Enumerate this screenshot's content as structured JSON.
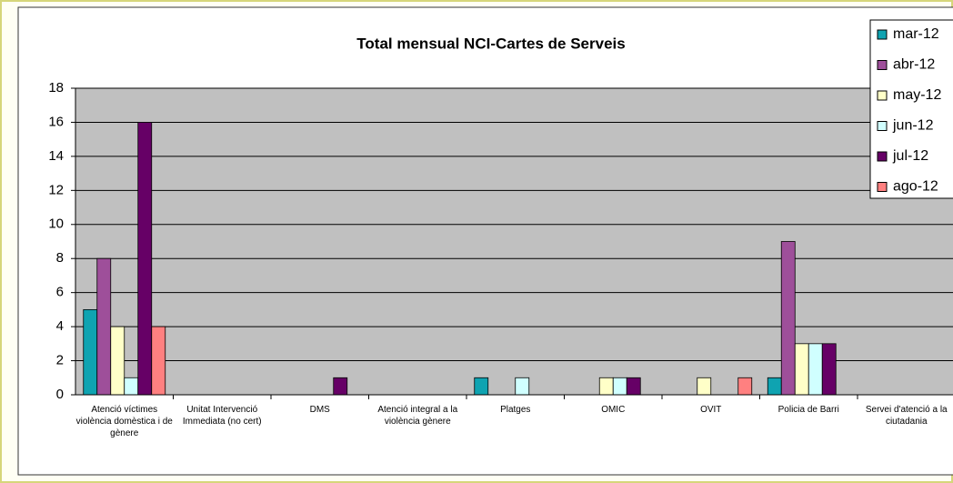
{
  "chart_data": {
    "type": "bar",
    "title": "Total mensual NCI-Cartes de Serveis",
    "categories": [
      "Atenció víctimes violència domèstica i de gènere",
      "Unitat Intervenció Immediata (no cert)",
      "DMS",
      "Atenció integral a la violència gènere",
      "Platges",
      "OMIC",
      "OVIT",
      "Policia de Barri",
      "Servei d'atenció a la ciutadania"
    ],
    "series": [
      {
        "name": "mar-12",
        "color": "#0fa3b1",
        "values": [
          5,
          0,
          0,
          0,
          1,
          0,
          0,
          1,
          0
        ]
      },
      {
        "name": "abr-12",
        "color": "#9e4f9a",
        "values": [
          8,
          0,
          0,
          0,
          0,
          0,
          0,
          9,
          0
        ]
      },
      {
        "name": "may-12",
        "color": "#ffffc8",
        "values": [
          4,
          0,
          0,
          0,
          0,
          1,
          1,
          3,
          0
        ]
      },
      {
        "name": "jun-12",
        "color": "#d0ffff",
        "values": [
          1,
          0,
          0,
          0,
          1,
          1,
          0,
          3,
          0
        ]
      },
      {
        "name": "jul-12",
        "color": "#660066",
        "values": [
          16,
          0,
          1,
          0,
          0,
          1,
          0,
          3,
          0
        ]
      },
      {
        "name": "ago-12",
        "color": "#ff8080",
        "values": [
          4,
          0,
          0,
          0,
          0,
          0,
          1,
          0,
          0
        ]
      }
    ],
    "ylim": [
      0,
      18
    ],
    "yticks": [
      0,
      2,
      4,
      6,
      8,
      10,
      12,
      14,
      16,
      18
    ],
    "grid": true,
    "legend": "right"
  }
}
